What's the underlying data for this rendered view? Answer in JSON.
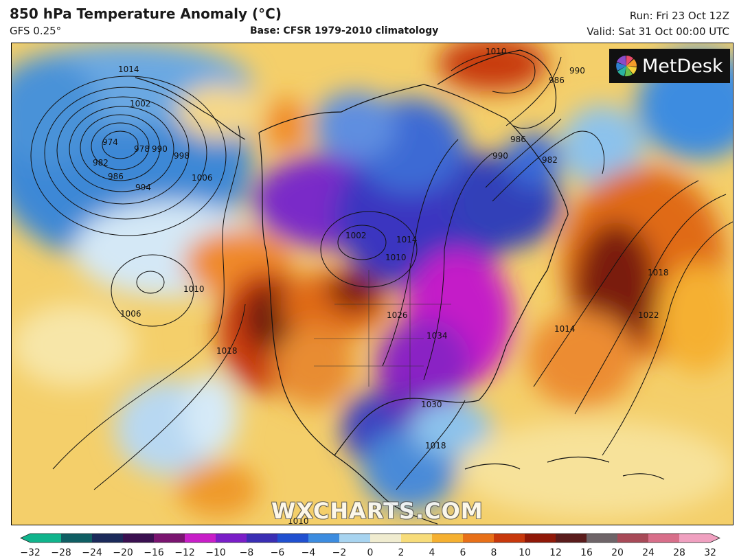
{
  "header": {
    "title": "850 hPa Temperature Anomaly (°C)",
    "model": "GFS 0.25°",
    "base": "Base: CFSR 1979-2010 climatology",
    "run": "Run: Fri 23 Oct 12Z",
    "valid": "Valid: Sat 31 Oct 00:00 UTC"
  },
  "logo": {
    "text": "MetDesk",
    "icon": "pinwheel-icon"
  },
  "watermark": "WXCHARTS.COM",
  "colorbar": {
    "ticks": [
      "−32",
      "−28",
      "−24",
      "−20",
      "−16",
      "−12",
      "−10",
      "−8",
      "−6",
      "−4",
      "−2",
      "0",
      "2",
      "4",
      "6",
      "8",
      "10",
      "12",
      "16",
      "20",
      "24",
      "28",
      "32"
    ],
    "colors": [
      "#10b48c",
      "#0f5e63",
      "#1b2a5a",
      "#3a1050",
      "#7a1470",
      "#c81ec8",
      "#7a1ec8",
      "#3a2eb4",
      "#2050d0",
      "#3c8ce0",
      "#a8d4f0",
      "#f0ecd0",
      "#f7dc7a",
      "#f5b030",
      "#e87018",
      "#c8380c",
      "#901808",
      "#5a1c1c",
      "#6e6468",
      "#a84a58",
      "#d86e8a",
      "#f0a0c0"
    ]
  },
  "isobars": [
    "1014",
    "1002",
    "974",
    "978",
    "982",
    "986",
    "990",
    "994",
    "998",
    "1006",
    "1010",
    "1006",
    "1018",
    "1002",
    "1010",
    "1014",
    "1026",
    "1034",
    "1030",
    "1018",
    "1014",
    "1018",
    "1022",
    "982",
    "986",
    "990",
    "1010",
    "986",
    "990",
    "1010"
  ]
}
